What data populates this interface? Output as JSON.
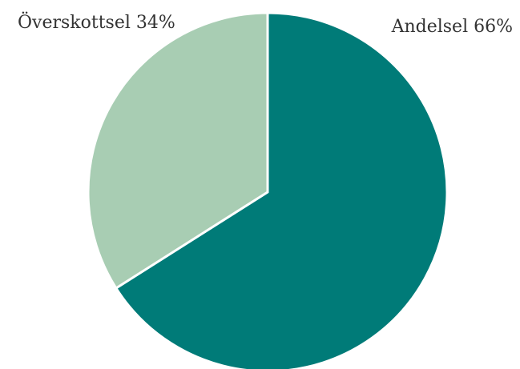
{
  "chart_data": {
    "type": "pie",
    "start_angle_deg": 0,
    "direction": "clockwise",
    "slices": [
      {
        "label": "Andelsel 66%",
        "value": 66,
        "color": "#007B78"
      },
      {
        "label": "Överskottsel 34%",
        "value": 34,
        "color": "#A8CDB3"
      }
    ]
  }
}
